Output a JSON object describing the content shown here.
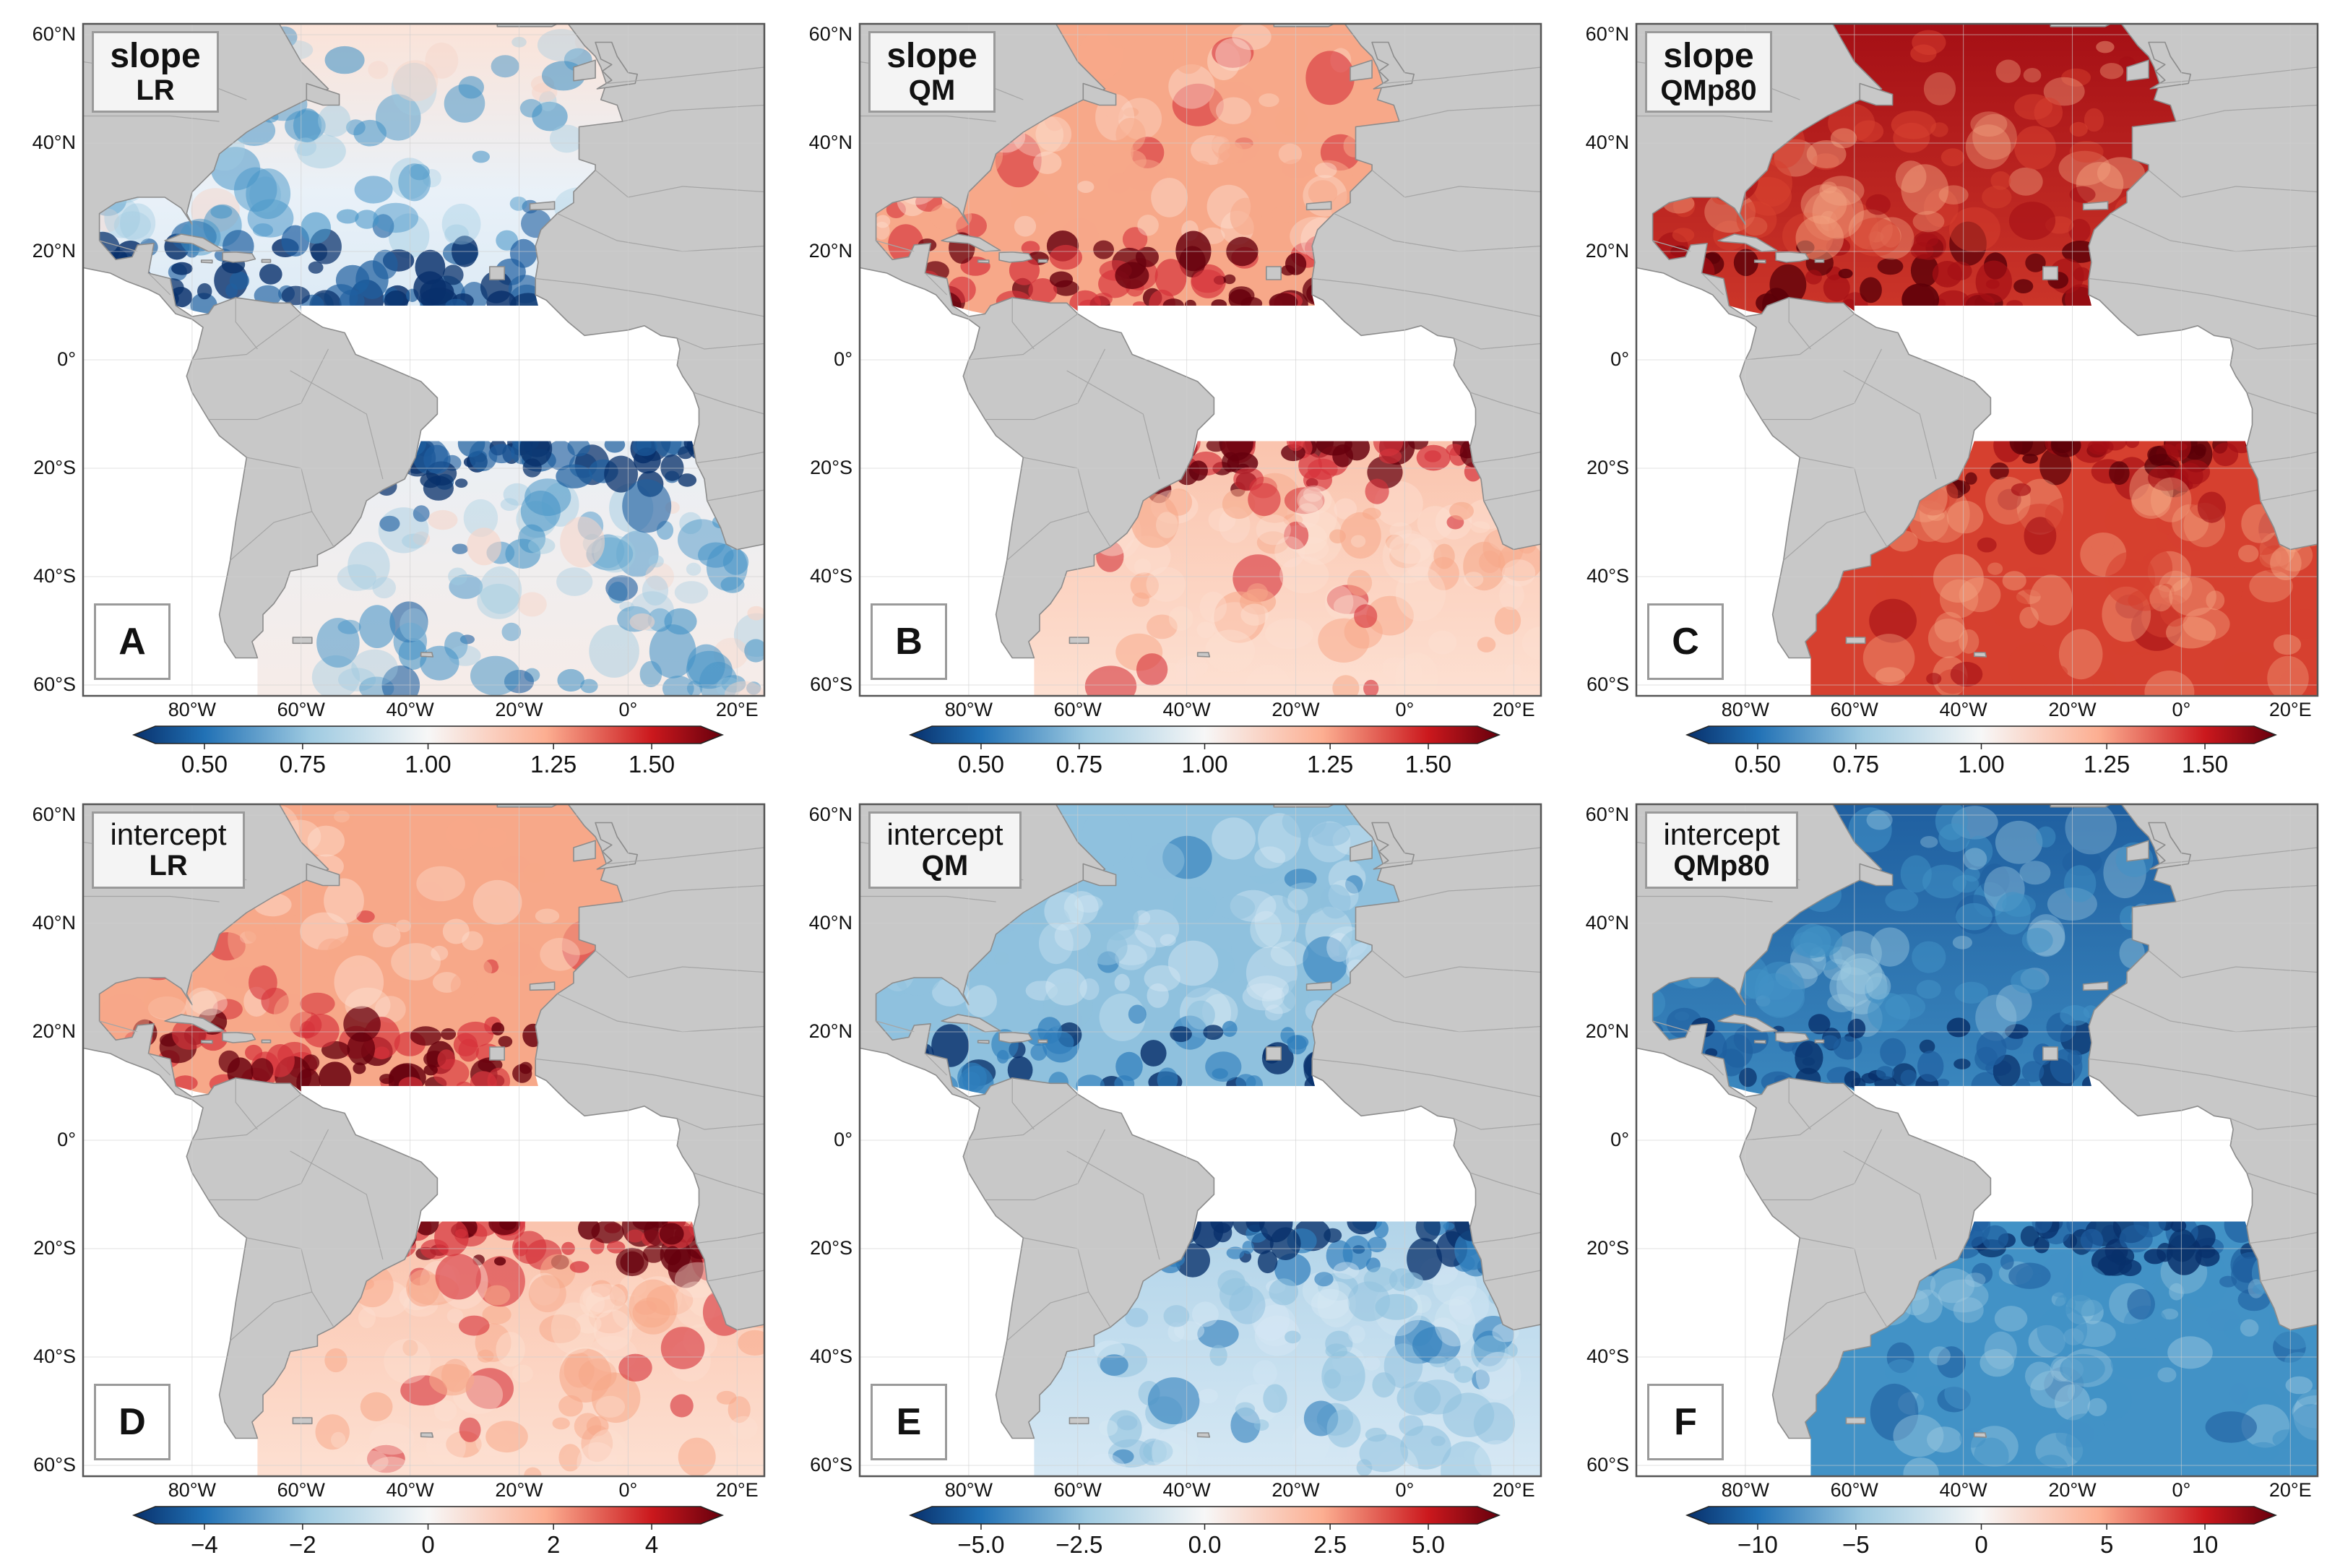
{
  "figure": {
    "lat_labels": [
      "60°N",
      "40°N",
      "20°N",
      "0°",
      "20°S",
      "40°S",
      "60°S"
    ],
    "lon_labels": [
      "80°W",
      "60°W",
      "40°W",
      "20°W",
      "0°",
      "20°E"
    ],
    "panels": [
      {
        "id": "A",
        "title": "slope",
        "method": "LR",
        "letter": "A",
        "cmap_mode": "blue_north_mixed_south_blue",
        "ticks": [
          "0.50",
          "0.75",
          "1.00",
          "1.25",
          "1.50"
        ]
      },
      {
        "id": "B",
        "title": "slope",
        "method": "QM",
        "letter": "B",
        "cmap_mode": "red_light",
        "ticks": [
          "0.50",
          "0.75",
          "1.00",
          "1.25",
          "1.50"
        ]
      },
      {
        "id": "C",
        "title": "slope",
        "method": "QMp80",
        "letter": "C",
        "cmap_mode": "red_strong",
        "ticks": [
          "0.50",
          "0.75",
          "1.00",
          "1.25",
          "1.50"
        ]
      },
      {
        "id": "D",
        "title": "intercept",
        "method": "LR",
        "letter": "D",
        "cmap_mode": "red_light",
        "ticks": [
          "−4",
          "−2",
          "0",
          "2",
          "4"
        ]
      },
      {
        "id": "E",
        "title": "intercept",
        "method": "QM",
        "letter": "E",
        "cmap_mode": "blue_light",
        "ticks": [
          "−5.0",
          "−2.5",
          "0.0",
          "2.5",
          "5.0"
        ]
      },
      {
        "id": "F",
        "title": "intercept",
        "method": "QMp80",
        "letter": "F",
        "cmap_mode": "blue_strong",
        "ticks": [
          "−10",
          "−5",
          "0",
          "5",
          "10"
        ]
      }
    ]
  },
  "colors": {
    "land": "#c8c8c8",
    "land_edge": "#8c8c8c",
    "ocean_gap": "#ffffff",
    "deep_blue": "#08306b",
    "mid_blue": "#4292c6",
    "light_blue": "#deebf7",
    "neutral": "#f7f7f7",
    "light_red": "#fcd5c5",
    "mid_red": "#e5533d",
    "deep_red": "#67000d"
  }
}
